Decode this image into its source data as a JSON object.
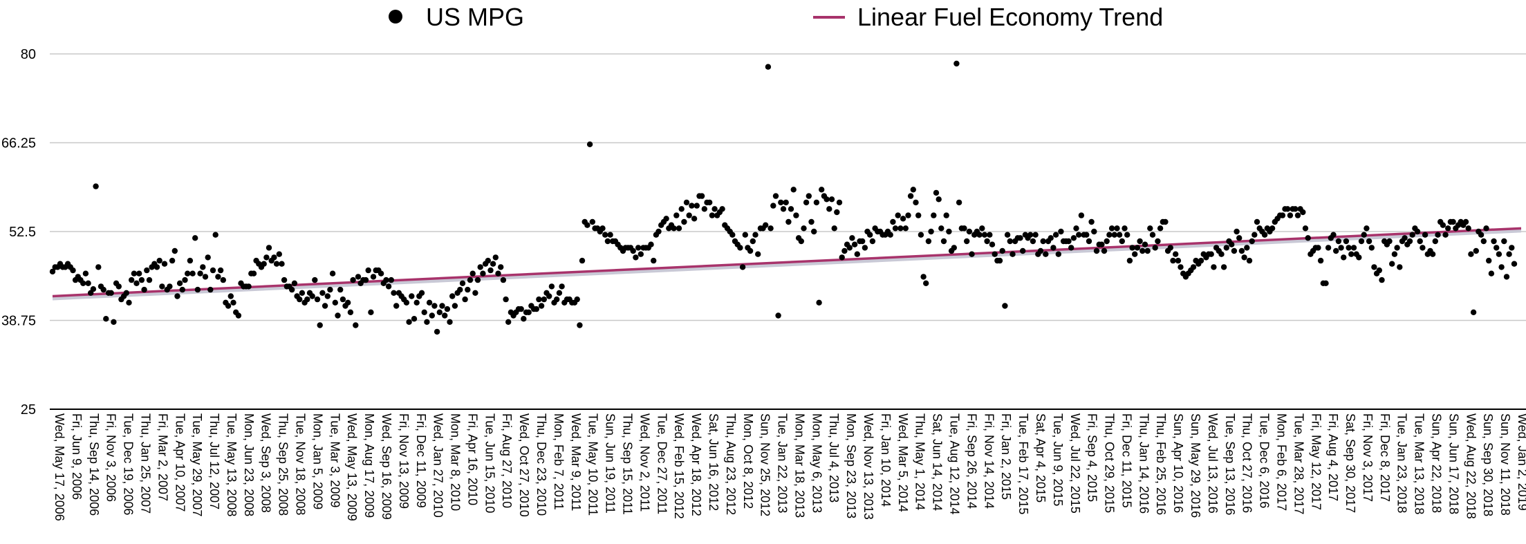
{
  "chart_data": {
    "type": "scatter",
    "legend": [
      {
        "name": "US MPG",
        "marker": "dot",
        "color": "#000000"
      },
      {
        "name": "Linear Fuel Economy Trend",
        "marker": "line",
        "color": "#a8336b"
      }
    ],
    "legend_position": "top",
    "y_ticks": [
      "25",
      "38.75",
      "52.5",
      "66.25",
      "80"
    ],
    "ylim": [
      25,
      80
    ],
    "grid": true,
    "x_tick_labels": [
      "Wed, May 17, 2006",
      "Fri, Jun 9, 2006",
      "Thu, Sep 14, 2006",
      "Fri, Nov 3, 2006",
      "Tue, Dec 19, 2006",
      "Thu, Jan 25, 2007",
      "Fri, Mar 2, 2007",
      "Tue, Apr 10, 2007",
      "Tue, May 29, 2007",
      "Thu, Jul 12, 2007",
      "Tue, May 13, 2008",
      "Mon, Jun 23, 2008",
      "Wed, Sep 3, 2008",
      "Thu, Sep 25, 2008",
      "Tue, Nov 18, 2008",
      "Mon, Jan 5, 2009",
      "Tue, Mar 3, 2009",
      "Wed, May 13, 2009",
      "Mon, Aug 17, 2009",
      "Wed, Sep 16, 2009",
      "Fri, Nov 13, 2009",
      "Fri, Dec 11, 2009",
      "Wed, Jan 27, 2010",
      "Mon, Mar 8, 2010",
      "Fri, Apr 16, 2010",
      "Tue, Jun 15, 2010",
      "Fri, Aug 27, 2010",
      "Wed, Oct 27, 2010",
      "Thu, Dec 23, 2010",
      "Mon, Feb 7, 2011",
      "Wed, Mar 9, 2011",
      "Tue, May 10, 2011",
      "Sun, Jun 19, 2011",
      "Thu, Sep 15, 2011",
      "Wed, Nov 2, 2011",
      "Tue, Dec 27, 2011",
      "Wed, Feb 15, 2012",
      "Wed, Apr 18, 2012",
      "Sat, Jun 16, 2012",
      "Thu, Aug 23, 2012",
      "Mon, Oct 8, 2012",
      "Sun, Nov 25, 2012",
      "Tue, Jan 22, 2013",
      "Mon, Mar 18, 2013",
      "Mon, May 6, 2013",
      "Thu, Jul 4, 2013",
      "Mon, Sep 23, 2013",
      "Wed, Nov 13, 2013",
      "Fri, Jan 10, 2014",
      "Wed, Mar 5, 2014",
      "Thu, May 1, 2014",
      "Sat, Jun 14, 2014",
      "Tue, Aug 12, 2014",
      "Fri, Sep 26, 2014",
      "Fri, Nov 14, 2014",
      "Fri, Jan 2, 2015",
      "Tue, Feb 17, 2015",
      "Sat, Apr 4, 2015",
      "Tue, Jun 9, 2015",
      "Wed, Jul 22, 2015",
      "Fri, Sep 4, 2015",
      "Thu, Oct 29, 2015",
      "Fri, Dec 11, 2015",
      "Thu, Jan 14, 2016",
      "Thu, Feb 25, 2016",
      "Sun, Apr 10, 2016",
      "Sun, May 29, 2016",
      "Wed, Jul 13, 2016",
      "Tue, Sep 13, 2016",
      "Thu, Oct 27, 2016",
      "Tue, Dec 6, 2016",
      "Mon, Feb 6, 2017",
      "Tue, Mar 28, 2017",
      "Fri, May 12, 2017",
      "Fri, Aug 4, 2017",
      "Sat, Sep 30, 2017",
      "Fri, Nov 3, 2017",
      "Fri, Dec 8, 2017",
      "Tue, Jan 23, 2018",
      "Tue, Mar 13, 2018",
      "Sun, Apr 22, 2018",
      "Sun, Jun 17, 2018",
      "Wed, Aug 22, 2018",
      "Sun, Sep 30, 2018",
      "Sun, Nov 11, 2018",
      "Wed, Jan 2, 2019"
    ],
    "series": [
      {
        "name": "US MPG",
        "values": [
          46.3,
          47,
          47,
          47.5,
          47,
          47,
          47.5,
          47,
          46.5,
          45,
          45.5,
          45,
          44.5,
          46,
          44.5,
          43,
          43.6,
          59.5,
          47,
          44,
          43.5,
          39,
          43,
          43,
          38.5,
          44.5,
          44,
          42,
          42.5,
          43,
          41.5,
          45,
          46,
          44.5,
          46,
          45,
          43.5,
          46.5,
          45,
          47,
          47.5,
          47,
          48,
          44,
          47.5,
          43.5,
          44,
          48,
          49.5,
          42.5,
          44.5,
          43.5,
          45,
          46,
          48,
          46,
          51.5,
          43.5,
          46,
          47,
          45.5,
          48.5,
          43.5,
          46.5,
          52,
          45.5,
          46.5,
          45,
          41.5,
          41,
          42.5,
          41.5,
          40,
          39.5,
          44.5,
          44,
          44,
          44,
          46,
          46,
          48,
          47.5,
          47,
          47.5,
          48.5,
          50,
          48,
          48.5,
          47.5,
          49,
          47.5,
          45,
          44,
          44,
          43.5,
          44.5,
          42.5,
          42,
          43,
          41.5,
          42,
          43,
          42.5,
          45,
          42,
          38,
          43,
          41,
          42.5,
          43.5,
          46,
          41.5,
          39.5,
          43.5,
          42,
          41,
          41.5,
          40,
          45,
          38,
          45.5,
          44.5,
          45,
          45,
          46.5,
          40,
          45.5,
          46.5,
          46.5,
          46,
          44.5,
          45,
          44,
          45,
          43,
          41,
          43,
          42.5,
          42,
          41.5,
          38.5,
          42.5,
          39,
          41.5,
          42.5,
          43,
          40,
          38.5,
          41.5,
          39.5,
          41,
          37,
          40,
          41,
          39.5,
          40.5,
          38.5,
          42.5,
          41,
          43,
          43.5,
          44.5,
          42,
          43.5,
          45,
          46,
          43,
          45,
          47,
          46,
          47.5,
          48,
          46.5,
          47.5,
          48.5,
          46,
          47,
          45,
          42,
          38.5,
          40,
          39.5,
          40,
          40.5,
          40.5,
          39,
          40,
          40,
          41,
          40.5,
          40.5,
          42,
          41,
          42,
          43,
          42.5,
          44,
          41.5,
          42,
          43,
          44,
          41.5,
          42,
          42,
          41.5,
          41.5,
          42,
          38,
          48,
          54,
          53.5,
          66,
          54,
          53,
          53,
          52.5,
          53,
          52,
          51,
          52,
          51,
          51,
          50.5,
          50,
          49.5,
          50,
          50,
          50,
          49.5,
          48.5,
          50,
          49,
          50,
          50,
          50,
          50.5,
          48,
          52,
          52.5,
          53.5,
          54,
          54.5,
          53,
          53.5,
          53,
          55,
          53,
          56,
          54,
          57,
          55,
          56.5,
          54.5,
          56.5,
          58,
          58,
          56,
          57,
          57,
          55,
          56,
          55,
          55.5,
          56,
          53.5,
          53,
          52.5,
          52,
          51,
          50.5,
          50,
          47,
          52,
          50,
          49.5,
          51,
          52,
          49,
          53,
          53,
          53.5,
          78,
          53,
          56.5,
          58,
          39.5,
          57,
          56,
          57,
          54,
          56,
          59,
          55,
          51.5,
          51,
          53,
          57,
          58,
          54,
          52.5,
          57,
          41.5,
          59,
          58,
          57.5,
          56,
          57.5,
          53,
          55.5,
          57,
          48.5,
          49.5,
          50.5,
          50,
          51.5,
          50.5,
          49,
          51,
          51,
          50,
          52.5,
          52,
          51,
          53,
          52.5,
          52.5,
          52,
          52,
          52.5,
          52,
          54,
          53,
          55,
          53,
          54.5,
          53,
          55,
          58,
          59,
          57,
          55,
          52,
          45.5,
          44.5,
          51,
          52.5,
          55,
          58.5,
          57.5,
          53,
          51,
          55,
          52.5,
          49.5,
          50,
          78.5,
          57,
          53,
          53,
          51,
          52.5,
          49,
          52,
          52.5,
          52,
          53,
          52,
          51,
          52,
          50.5,
          49,
          48,
          48,
          49.5,
          41,
          52,
          51,
          49,
          51,
          51.5,
          51.5,
          49.5,
          52,
          51.5,
          52,
          51,
          52,
          49,
          49.5,
          51,
          49,
          51,
          51.5,
          50,
          52,
          49,
          52.5,
          51,
          51,
          51,
          50,
          51.5,
          53,
          52,
          55,
          52,
          52,
          51,
          54,
          52.5,
          49.5,
          50.5,
          50.5,
          49.5,
          51,
          52,
          53,
          52,
          53,
          52,
          51,
          53,
          52,
          48,
          50,
          49,
          50,
          51,
          49.5,
          50.5,
          49.5,
          53,
          52,
          50,
          51,
          53,
          54,
          54,
          49.5,
          50,
          48,
          49,
          48,
          47,
          46,
          45.5,
          46,
          46.5,
          47,
          48,
          47.5,
          48,
          49,
          48.5,
          49,
          49,
          47,
          50,
          49.5,
          49,
          47,
          50,
          51,
          50.5,
          49.5,
          52.5,
          51.5,
          49.5,
          48.5,
          50,
          48,
          51,
          52,
          54,
          53,
          52.5,
          52,
          53,
          52.5,
          53,
          54,
          54.5,
          55,
          55,
          56,
          56,
          55,
          56,
          56,
          55,
          56,
          55.5,
          53,
          51.5,
          49,
          49.5,
          50,
          50,
          48,
          44.5,
          44.5,
          50,
          51.5,
          52,
          49.5,
          51,
          50,
          48.5,
          51,
          50,
          49,
          50,
          49,
          48.5,
          51,
          52,
          53,
          51,
          50,
          47,
          46,
          46.5,
          45,
          51,
          50.5,
          51,
          47.5,
          49,
          50,
          47,
          51,
          51.5,
          50.5,
          51,
          52,
          53,
          52.5,
          51,
          50,
          52,
          49,
          49.5,
          49,
          51,
          52,
          54,
          53.5,
          52,
          53,
          54,
          54,
          53,
          53.5,
          54,
          53.5,
          54,
          53,
          49,
          40,
          49.5,
          52.5,
          52,
          51,
          53,
          48,
          46,
          51,
          50,
          49,
          47,
          51,
          45.5,
          49,
          50,
          47.5
        ]
      },
      {
        "name": "Linear Fuel Economy Trend",
        "values": [
          42.5,
          53
        ]
      }
    ]
  }
}
